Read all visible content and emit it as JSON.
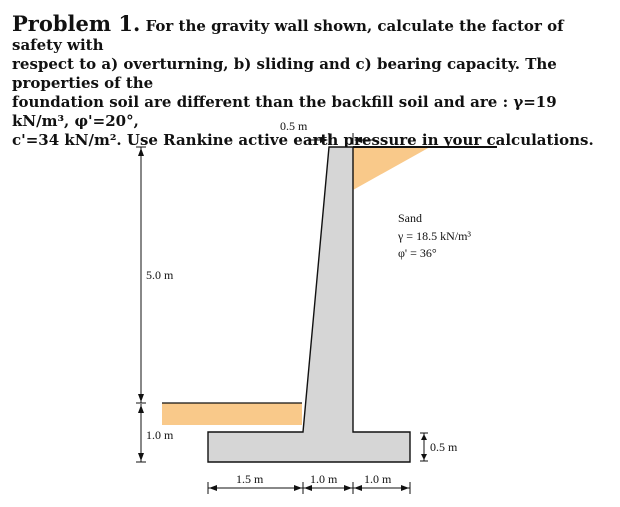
{
  "problem": {
    "heading": "Problem 1.",
    "line1": "For the gravity wall shown, calculate the factor of safety with",
    "line2": "respect to a) overturning, b) sliding and c) bearing capacity.  The properties of the",
    "line3": "foundation soil are different than the backfill soil and are : γ=19 kN/m³, φ'=20°,",
    "line4": "c'=34 kN/m².  Use Rankine active earth pressure in your calculations."
  },
  "figure": {
    "stem_top_width": "0.5 m",
    "wall_height": "5.0 m",
    "embedment_depth": "1.0 m",
    "base_thickness": "0.5 m",
    "toe_length": "1.5 m",
    "stem_base_width": "1.0 m",
    "heel_length": "1.0 m",
    "soil_name": "Sand",
    "soil_unit_weight": "γ = 18.5 kN/m³",
    "soil_friction_angle": "φ' = 36°",
    "colors": {
      "concrete": "#d6d6d6",
      "soil": "#f9c98a",
      "line": "#111111"
    }
  }
}
